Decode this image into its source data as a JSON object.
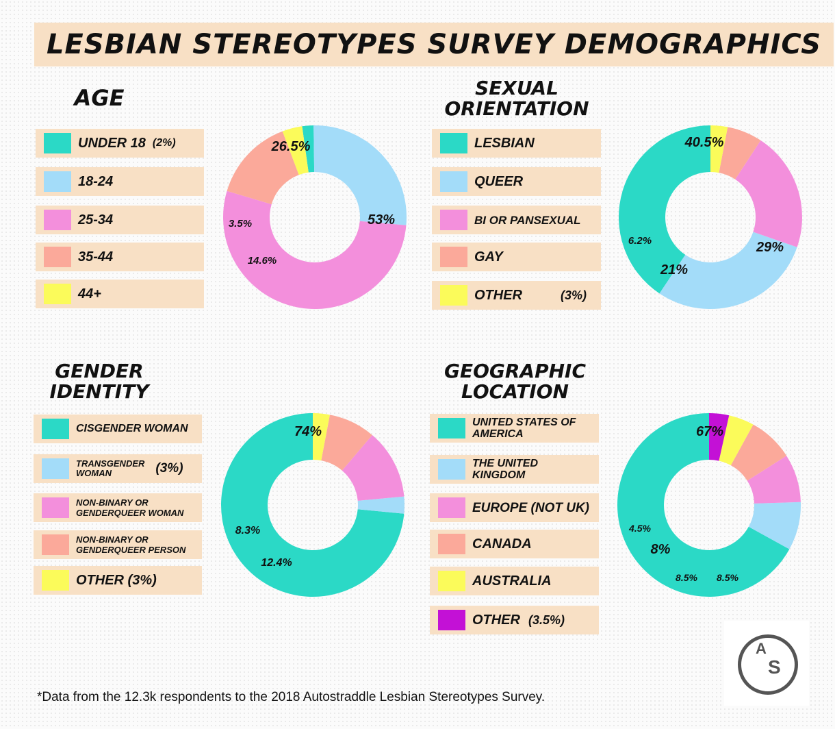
{
  "title": "LESBIAN STEREOTYPES SURVEY DEMOGRAPHICS",
  "footnote": "*Data from the 12.3k respondents to the 2018 Autostraddle Lesbian Stereotypes Survey.",
  "logo": {
    "letter_a": "A",
    "letter_s": "S"
  },
  "colors": {
    "teal": "#2bd9c6",
    "lightblue": "#a3dcf9",
    "pink": "#f38fdc",
    "salmon": "#fba99a",
    "yellow": "#fbfb5a",
    "purple": "#c311d6",
    "legend_bg": "#f8e0c5"
  },
  "sections": {
    "age": {
      "heading_lines": [
        "AGE"
      ],
      "legend": [
        {
          "label": "UNDER 18",
          "note": "(2%)",
          "color": "#2bd9c6"
        },
        {
          "label": "18-24",
          "note": "",
          "color": "#a3dcf9"
        },
        {
          "label": "25-34",
          "note": "",
          "color": "#f38fdc"
        },
        {
          "label": "35-44",
          "note": "",
          "color": "#fba99a"
        },
        {
          "label": "44+",
          "note": "",
          "color": "#fbfb5a"
        }
      ]
    },
    "orientation": {
      "heading_lines": [
        "SEXUAL",
        "ORIENTATION"
      ],
      "legend": [
        {
          "label": "LESBIAN",
          "note": "",
          "color": "#2bd9c6"
        },
        {
          "label": "QUEER",
          "note": "",
          "color": "#a3dcf9"
        },
        {
          "label": "BI OR PANSEXUAL",
          "note": "",
          "color": "#f38fdc"
        },
        {
          "label": "GAY",
          "note": "",
          "color": "#fba99a"
        },
        {
          "label": "OTHER",
          "note": "(3%)",
          "color": "#fbfb5a"
        }
      ]
    },
    "gender": {
      "heading_lines": [
        "GENDER",
        "IDENTITY"
      ],
      "legend": [
        {
          "label_lines": [
            "CISGENDER WOMAN"
          ],
          "note": "",
          "color": "#2bd9c6"
        },
        {
          "label_lines": [
            "TRANSGENDER",
            "WOMAN"
          ],
          "note": "(3%)",
          "color": "#a3dcf9"
        },
        {
          "label_lines": [
            "NON-BINARY OR",
            "GENDERQUEER WOMAN"
          ],
          "note": "",
          "color": "#f38fdc"
        },
        {
          "label_lines": [
            "NON-BINARY OR",
            "GENDERQUEER PERSON"
          ],
          "note": "",
          "color": "#fba99a"
        },
        {
          "label_lines": [
            "OTHER (3%)"
          ],
          "note": "",
          "color": "#fbfb5a"
        }
      ]
    },
    "geo": {
      "heading_lines": [
        "GEOGRAPHIC",
        "LOCATION"
      ],
      "legend": [
        {
          "label_lines": [
            "UNITED STATES OF",
            "AMERICA"
          ],
          "note": "",
          "color": "#2bd9c6"
        },
        {
          "label_lines": [
            "THE UNITED",
            "KINGDOM"
          ],
          "note": "",
          "color": "#a3dcf9"
        },
        {
          "label_lines": [
            "EUROPE (NOT UK)"
          ],
          "note": "",
          "color": "#f38fdc"
        },
        {
          "label_lines": [
            "CANADA"
          ],
          "note": "",
          "color": "#fba99a"
        },
        {
          "label_lines": [
            "AUSTRALIA"
          ],
          "note": "",
          "color": "#fbfb5a"
        },
        {
          "label_lines": [
            "OTHER"
          ],
          "note": "(3.5%)",
          "color": "#c311d6"
        }
      ]
    }
  },
  "chart_data": [
    {
      "type": "pie",
      "title": "AGE",
      "categories": [
        "UNDER 18",
        "18-24",
        "25-34",
        "35-44",
        "44+"
      ],
      "values": [
        2,
        26.5,
        53,
        14.6,
        3.5
      ],
      "slice_labels": [
        "",
        "26.5%",
        "53%",
        "14.6%",
        "3.5%"
      ],
      "colors": [
        "#2bd9c6",
        "#a3dcf9",
        "#f38fdc",
        "#fba99a",
        "#fbfb5a"
      ],
      "donut": true
    },
    {
      "type": "pie",
      "title": "SEXUAL ORIENTATION",
      "categories": [
        "LESBIAN",
        "QUEER",
        "BI OR PANSEXUAL",
        "GAY",
        "OTHER"
      ],
      "values": [
        40.5,
        29,
        21,
        6.2,
        3
      ],
      "slice_labels": [
        "40.5%",
        "29%",
        "21%",
        "6.2%",
        ""
      ],
      "colors": [
        "#2bd9c6",
        "#a3dcf9",
        "#f38fdc",
        "#fba99a",
        "#fbfb5a"
      ],
      "donut": true
    },
    {
      "type": "pie",
      "title": "GENDER IDENTITY",
      "categories": [
        "CISGENDER WOMAN",
        "TRANSGENDER WOMAN",
        "NON-BINARY OR GENDERQUEER WOMAN",
        "NON-BINARY OR GENDERQUEER PERSON",
        "OTHER"
      ],
      "values": [
        74,
        3,
        12.4,
        8.3,
        3
      ],
      "slice_labels": [
        "74%",
        "",
        "12.4%",
        "8.3%",
        ""
      ],
      "colors": [
        "#2bd9c6",
        "#a3dcf9",
        "#f38fdc",
        "#fba99a",
        "#fbfb5a"
      ],
      "donut": true
    },
    {
      "type": "pie",
      "title": "GEOGRAPHIC LOCATION",
      "categories": [
        "UNITED STATES OF AMERICA",
        "THE UNITED KINGDOM",
        "EUROPE (NOT UK)",
        "CANADA",
        "AUSTRALIA",
        "OTHER"
      ],
      "values": [
        67,
        8.5,
        8.5,
        8,
        4.5,
        3.5
      ],
      "slice_labels": [
        "67%",
        "8.5%",
        "8.5%",
        "8%",
        "4.5%",
        ""
      ],
      "colors": [
        "#2bd9c6",
        "#a3dcf9",
        "#f38fdc",
        "#fba99a",
        "#fbfb5a",
        "#c311d6"
      ],
      "donut": true
    }
  ]
}
